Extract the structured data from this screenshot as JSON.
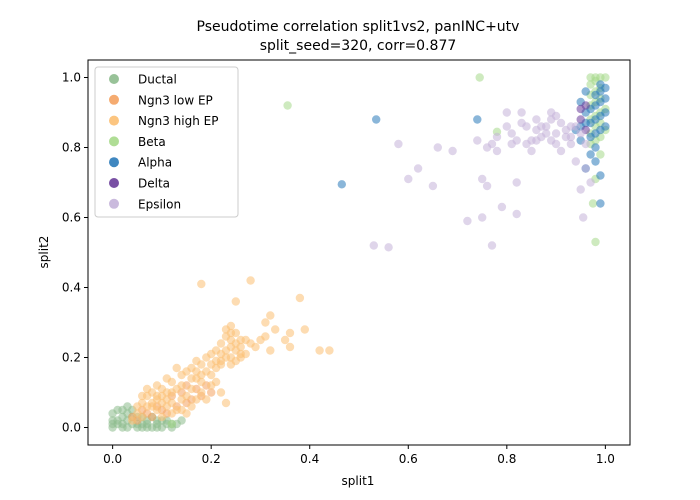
{
  "chart_data": {
    "type": "scatter",
    "title_line1": "Pseudotime correlation split1vs2, panINC+utv",
    "title_line2": "split_seed=320, corr=0.877",
    "xlabel": "split1",
    "ylabel": "split2",
    "xlim": [
      -0.05,
      1.05
    ],
    "ylim": [
      -0.05,
      1.05
    ],
    "xticks": [
      0.0,
      0.2,
      0.4,
      0.6,
      0.8,
      1.0
    ],
    "yticks": [
      0.0,
      0.2,
      0.4,
      0.6,
      0.8,
      1.0
    ],
    "xtick_labels": [
      "0.0",
      "0.2",
      "0.4",
      "0.6",
      "0.8",
      "1.0"
    ],
    "ytick_labels": [
      "0.0",
      "0.2",
      "0.4",
      "0.6",
      "0.8",
      "1.0"
    ],
    "grid": false,
    "legend_position": "upper-left",
    "series": [
      {
        "name": "Ductal",
        "color": "#8dbb8d",
        "points": [
          [
            0.0,
            0.0
          ],
          [
            0.01,
            0.01
          ],
          [
            0.02,
            0.0
          ],
          [
            0.03,
            0.02
          ],
          [
            0.04,
            0.01
          ],
          [
            0.05,
            0.0
          ],
          [
            0.06,
            0.01
          ],
          [
            0.07,
            0.02
          ],
          [
            0.08,
            0.0
          ],
          [
            0.09,
            0.01
          ],
          [
            0.1,
            0.0
          ],
          [
            0.02,
            0.03
          ],
          [
            0.03,
            0.04
          ],
          [
            0.01,
            0.05
          ],
          [
            0.04,
            0.03
          ],
          [
            0.0,
            0.02
          ],
          [
            0.05,
            0.03
          ],
          [
            0.06,
            0.0
          ],
          [
            0.07,
            0.01
          ],
          [
            0.09,
            0.02
          ],
          [
            0.11,
            0.01
          ],
          [
            0.12,
            0.0
          ],
          [
            0.13,
            0.01
          ],
          [
            0.14,
            0.02
          ],
          [
            0.02,
            0.01
          ],
          [
            0.03,
            0.0
          ],
          [
            0.04,
            0.05
          ],
          [
            0.0,
            0.04
          ],
          [
            0.08,
            0.03
          ],
          [
            0.1,
            0.02
          ],
          [
            0.01,
            0.02
          ],
          [
            0.05,
            0.01
          ],
          [
            0.06,
            0.03
          ],
          [
            0.12,
            0.01
          ],
          [
            0.03,
            0.06
          ],
          [
            0.02,
            0.05
          ],
          [
            0.07,
            0.0
          ],
          [
            0.09,
            0.0
          ],
          [
            0.11,
            0.02
          ],
          [
            0.0,
            0.01
          ]
        ]
      },
      {
        "name": "Ngn3 low EP",
        "color": "#f4a261",
        "points": [
          [
            0.05,
            0.02
          ],
          [
            0.07,
            0.04
          ],
          [
            0.08,
            0.03
          ],
          [
            0.1,
            0.05
          ],
          [
            0.11,
            0.04
          ],
          [
            0.13,
            0.06
          ],
          [
            0.15,
            0.07
          ],
          [
            0.12,
            0.09
          ],
          [
            0.14,
            0.1
          ],
          [
            0.16,
            0.08
          ],
          [
            0.09,
            0.06
          ],
          [
            0.17,
            0.11
          ],
          [
            0.18,
            0.09
          ],
          [
            0.06,
            0.05
          ],
          [
            0.19,
            0.12
          ],
          [
            0.2,
            0.1
          ],
          [
            0.04,
            0.03
          ],
          [
            0.15,
            0.12
          ]
        ]
      },
      {
        "name": "Ngn3 high EP",
        "color": "#fcbf72",
        "points": [
          [
            0.18,
            0.41
          ],
          [
            0.23,
            0.28
          ],
          [
            0.24,
            0.29
          ],
          [
            0.25,
            0.27
          ],
          [
            0.26,
            0.25
          ],
          [
            0.23,
            0.26
          ],
          [
            0.22,
            0.24
          ],
          [
            0.24,
            0.23
          ],
          [
            0.25,
            0.22
          ],
          [
            0.26,
            0.21
          ],
          [
            0.23,
            0.2
          ],
          [
            0.22,
            0.19
          ],
          [
            0.24,
            0.2
          ],
          [
            0.25,
            0.24
          ],
          [
            0.21,
            0.22
          ],
          [
            0.2,
            0.21
          ],
          [
            0.19,
            0.2
          ],
          [
            0.18,
            0.18
          ],
          [
            0.17,
            0.19
          ],
          [
            0.16,
            0.17
          ],
          [
            0.15,
            0.16
          ],
          [
            0.14,
            0.15
          ],
          [
            0.13,
            0.17
          ],
          [
            0.12,
            0.13
          ],
          [
            0.11,
            0.14
          ],
          [
            0.1,
            0.11
          ],
          [
            0.09,
            0.12
          ],
          [
            0.08,
            0.1
          ],
          [
            0.07,
            0.09
          ],
          [
            0.06,
            0.07
          ],
          [
            0.28,
            0.42
          ],
          [
            0.25,
            0.36
          ],
          [
            0.38,
            0.37
          ],
          [
            0.32,
            0.32
          ],
          [
            0.31,
            0.3
          ],
          [
            0.33,
            0.28
          ],
          [
            0.36,
            0.27
          ],
          [
            0.39,
            0.28
          ],
          [
            0.35,
            0.25
          ],
          [
            0.3,
            0.25
          ],
          [
            0.29,
            0.23
          ],
          [
            0.32,
            0.22
          ],
          [
            0.28,
            0.24
          ],
          [
            0.36,
            0.23
          ],
          [
            0.42,
            0.22
          ],
          [
            0.44,
            0.22
          ],
          [
            0.31,
            0.26
          ],
          [
            0.27,
            0.21
          ],
          [
            0.21,
            0.17
          ],
          [
            0.2,
            0.15
          ],
          [
            0.18,
            0.13
          ],
          [
            0.17,
            0.14
          ],
          [
            0.16,
            0.11
          ],
          [
            0.15,
            0.09
          ],
          [
            0.14,
            0.08
          ],
          [
            0.19,
            0.08
          ],
          [
            0.22,
            0.1
          ],
          [
            0.23,
            0.07
          ],
          [
            0.13,
            0.05
          ],
          [
            0.12,
            0.04
          ],
          [
            0.11,
            0.06
          ],
          [
            0.1,
            0.03
          ],
          [
            0.09,
            0.05
          ],
          [
            0.08,
            0.07
          ],
          [
            0.07,
            0.06
          ],
          [
            0.06,
            0.03
          ],
          [
            0.05,
            0.04
          ],
          [
            0.04,
            0.02
          ],
          [
            0.2,
            0.18
          ],
          [
            0.22,
            0.21
          ],
          [
            0.24,
            0.25
          ],
          [
            0.21,
            0.19
          ],
          [
            0.19,
            0.16
          ],
          [
            0.18,
            0.15
          ],
          [
            0.17,
            0.16
          ],
          [
            0.16,
            0.14
          ],
          [
            0.14,
            0.12
          ],
          [
            0.13,
            0.11
          ],
          [
            0.12,
            0.1
          ],
          [
            0.11,
            0.08
          ],
          [
            0.1,
            0.07
          ],
          [
            0.09,
            0.09
          ],
          [
            0.08,
            0.06
          ],
          [
            0.24,
            0.27
          ],
          [
            0.26,
            0.23
          ],
          [
            0.27,
            0.25
          ],
          [
            0.23,
            0.22
          ],
          [
            0.22,
            0.18
          ],
          [
            0.25,
            0.19
          ],
          [
            0.26,
            0.2
          ],
          [
            0.24,
            0.18
          ],
          [
            0.21,
            0.13
          ],
          [
            0.2,
            0.12
          ],
          [
            0.18,
            0.1
          ],
          [
            0.17,
            0.08
          ],
          [
            0.16,
            0.06
          ],
          [
            0.15,
            0.04
          ],
          [
            0.14,
            0.05
          ],
          [
            0.12,
            0.07
          ],
          [
            0.11,
            0.1
          ],
          [
            0.1,
            0.09
          ],
          [
            0.09,
            0.08
          ],
          [
            0.07,
            0.11
          ],
          [
            0.06,
            0.09
          ],
          [
            0.05,
            0.06
          ]
        ]
      },
      {
        "name": "Beta",
        "color": "#a6d98a",
        "points": [
          [
            0.355,
            0.92
          ],
          [
            0.745,
            1.0
          ],
          [
            0.78,
            0.845
          ],
          [
            0.97,
            1.0
          ],
          [
            0.98,
            1.0
          ],
          [
            0.99,
            1.0
          ],
          [
            1.0,
            1.0
          ],
          [
            0.98,
            0.99
          ],
          [
            0.97,
            0.98
          ],
          [
            0.99,
            0.97
          ],
          [
            0.98,
            0.96
          ],
          [
            0.97,
            0.95
          ],
          [
            0.99,
            0.94
          ],
          [
            0.98,
            0.93
          ],
          [
            0.97,
            0.92
          ],
          [
            1.0,
            0.91
          ],
          [
            0.99,
            0.9
          ],
          [
            0.98,
            0.89
          ],
          [
            0.97,
            0.88
          ],
          [
            0.99,
            0.87
          ],
          [
            0.98,
            0.86
          ],
          [
            1.0,
            0.85
          ],
          [
            0.97,
            0.84
          ],
          [
            0.99,
            0.83
          ],
          [
            0.98,
            0.82
          ],
          [
            0.97,
            0.81
          ],
          [
            0.99,
            0.78
          ],
          [
            0.98,
            0.71
          ],
          [
            0.975,
            0.64
          ],
          [
            0.98,
            0.53
          ],
          [
            0.12,
            0.01
          ]
        ]
      },
      {
        "name": "Alpha",
        "color": "#2a7ab9",
        "points": [
          [
            0.535,
            0.88
          ],
          [
            0.465,
            0.695
          ],
          [
            0.74,
            0.88
          ],
          [
            0.99,
            0.72
          ],
          [
            0.99,
            0.64
          ],
          [
            0.98,
            0.8
          ],
          [
            0.97,
            0.78
          ],
          [
            0.96,
            0.74
          ],
          [
            0.98,
            0.76
          ],
          [
            0.99,
            0.98
          ],
          [
            1.0,
            0.97
          ],
          [
            0.99,
            0.96
          ],
          [
            0.98,
            0.95
          ],
          [
            1.0,
            0.94
          ],
          [
            0.99,
            0.93
          ],
          [
            0.98,
            0.92
          ],
          [
            0.97,
            0.91
          ],
          [
            1.0,
            0.9
          ],
          [
            0.99,
            0.89
          ],
          [
            0.98,
            0.88
          ],
          [
            0.97,
            0.87
          ],
          [
            1.0,
            0.86
          ],
          [
            0.99,
            0.85
          ],
          [
            0.98,
            0.84
          ],
          [
            0.97,
            0.83
          ],
          [
            0.96,
            0.9
          ],
          [
            0.96,
            0.87
          ],
          [
            0.95,
            0.86
          ],
          [
            0.95,
            0.82
          ],
          [
            0.94,
            0.85
          ],
          [
            0.96,
            0.96
          ],
          [
            0.95,
            0.93
          ]
        ]
      },
      {
        "name": "Delta",
        "color": "#6a3d9a",
        "points": [
          [
            0.95,
            0.91
          ],
          [
            0.96,
            0.92
          ],
          [
            0.95,
            0.88
          ],
          [
            0.96,
            0.85
          ]
        ]
      },
      {
        "name": "Epsilon",
        "color": "#c4b2d9",
        "points": [
          [
            0.53,
            0.52
          ],
          [
            0.56,
            0.515
          ],
          [
            0.58,
            0.81
          ],
          [
            0.6,
            0.71
          ],
          [
            0.62,
            0.74
          ],
          [
            0.65,
            0.69
          ],
          [
            0.66,
            0.8
          ],
          [
            0.69,
            0.79
          ],
          [
            0.72,
            0.59
          ],
          [
            0.75,
            0.6
          ],
          [
            0.75,
            0.71
          ],
          [
            0.76,
            0.69
          ],
          [
            0.77,
            0.52
          ],
          [
            0.79,
            0.63
          ],
          [
            0.82,
            0.61
          ],
          [
            0.82,
            0.7
          ],
          [
            0.74,
            0.82
          ],
          [
            0.76,
            0.8
          ],
          [
            0.78,
            0.83
          ],
          [
            0.8,
            0.86
          ],
          [
            0.81,
            0.84
          ],
          [
            0.83,
            0.87
          ],
          [
            0.84,
            0.86
          ],
          [
            0.85,
            0.82
          ],
          [
            0.86,
            0.85
          ],
          [
            0.87,
            0.83
          ],
          [
            0.88,
            0.86
          ],
          [
            0.89,
            0.88
          ],
          [
            0.9,
            0.84
          ],
          [
            0.91,
            0.87
          ],
          [
            0.92,
            0.85
          ],
          [
            0.93,
            0.83
          ],
          [
            0.94,
            0.86
          ],
          [
            0.86,
            0.88
          ],
          [
            0.84,
            0.81
          ],
          [
            0.85,
            0.79
          ],
          [
            0.89,
            0.82
          ],
          [
            0.9,
            0.81
          ],
          [
            0.91,
            0.79
          ],
          [
            0.93,
            0.81
          ],
          [
            0.94,
            0.76
          ],
          [
            0.95,
            0.68
          ],
          [
            0.96,
            0.74
          ],
          [
            0.97,
            0.7
          ],
          [
            0.955,
            0.6
          ],
          [
            0.8,
            0.9
          ],
          [
            0.83,
            0.9
          ],
          [
            0.87,
            0.86
          ],
          [
            0.88,
            0.84
          ],
          [
            0.92,
            0.83
          ],
          [
            0.93,
            0.86
          ],
          [
            0.9,
            0.89
          ],
          [
            0.89,
            0.9
          ],
          [
            0.86,
            0.82
          ],
          [
            0.82,
            0.82
          ],
          [
            0.81,
            0.81
          ],
          [
            0.78,
            0.79
          ],
          [
            0.77,
            0.81
          ],
          [
            0.95,
            0.84
          ],
          [
            0.96,
            0.81
          ]
        ]
      }
    ]
  }
}
